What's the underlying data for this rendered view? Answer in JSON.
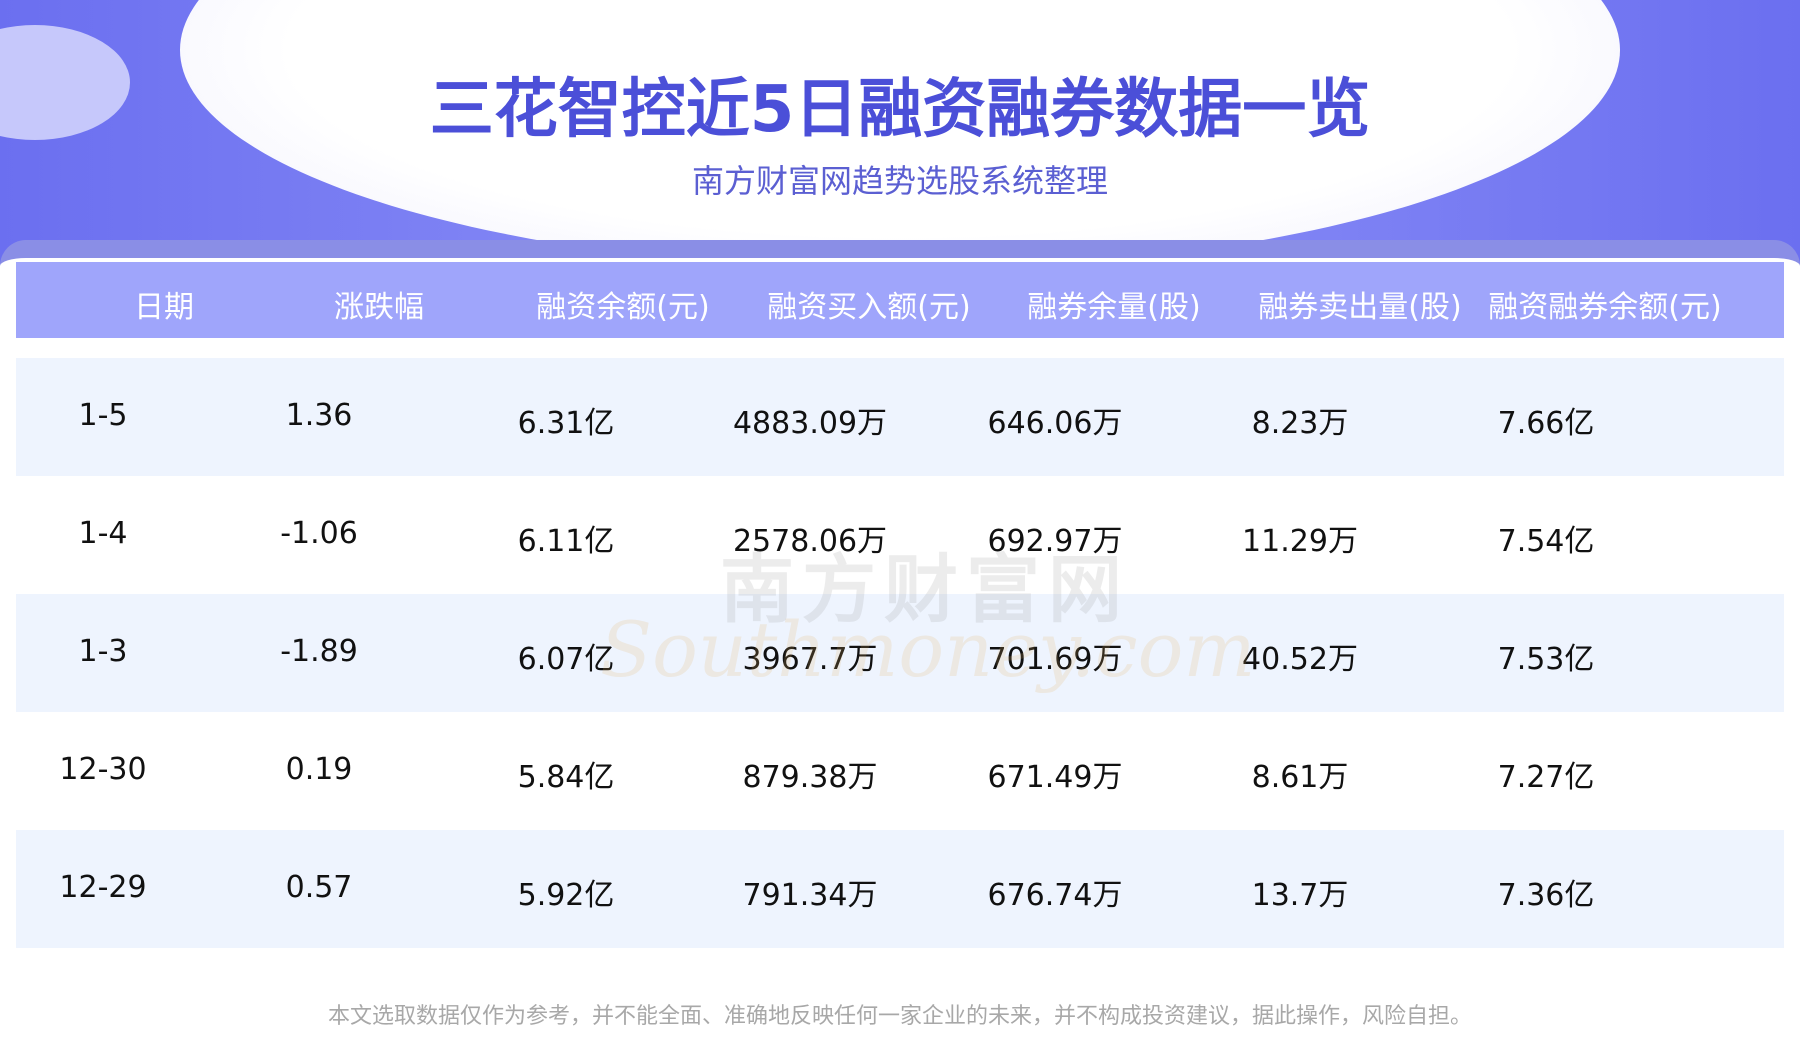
{
  "header": {
    "title": "三花智控近5日融资融券数据一览",
    "subtitle": "南方财富网趋势选股系统整理"
  },
  "table": {
    "columns": [
      "日期",
      "涨跌幅",
      "融资余额(元)",
      "融资买入额(元)",
      "融券余量(股)",
      "融券卖出量(股)",
      "融资融券余额(元)"
    ],
    "rows": [
      [
        "1-5",
        "1.36",
        "6.31亿",
        "4883.09万",
        "646.06万",
        "8.23万",
        "7.66亿"
      ],
      [
        "1-4",
        "-1.06",
        "6.11亿",
        "2578.06万",
        "692.97万",
        "11.29万",
        "7.54亿"
      ],
      [
        "1-3",
        "-1.89",
        "6.07亿",
        "3967.7万",
        "701.69万",
        "40.52万",
        "7.53亿"
      ],
      [
        "12-30",
        "0.19",
        "5.84亿",
        "879.38万",
        "671.49万",
        "8.61万",
        "7.27亿"
      ],
      [
        "12-29",
        "0.57",
        "5.92亿",
        "791.34万",
        "676.74万",
        "13.7万",
        "7.36亿"
      ]
    ]
  },
  "watermark": {
    "cn": "南方财富网",
    "en": "Southmoney.com"
  },
  "footer": {
    "note": "本文选取数据仅作为参考，并不能全面、准确地反映任何一家企业的未来，并不构成投资建议，据此操作，风险自担。"
  }
}
